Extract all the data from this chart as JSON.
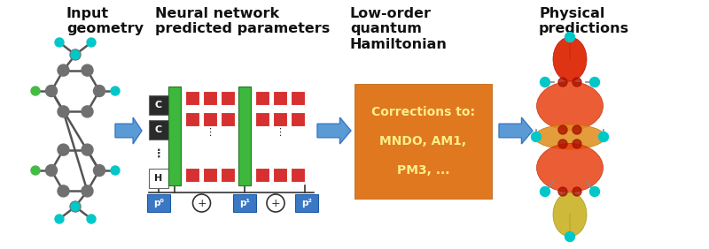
{
  "background_color": "#ffffff",
  "title1": "Input\ngeometry",
  "title2": "Neural network\npredicted parameters",
  "title3": "Low-order\nquantum\nHamiltonian",
  "title4": "Physical\npredictions",
  "title_fontsize": 11.5,
  "title_fontweight": "bold",
  "arrow_color": "#5b9bd5",
  "arrow_edge_color": "#3a78c4",
  "green_color": "#3db83d",
  "red_color": "#d63030",
  "blue_box_color": "#3a78c4",
  "orange_color": "#e07820",
  "orange_text_color": "#ffee88",
  "dark_text_color": "#111111",
  "node_gray": "#707070",
  "node_cyan": "#00c8c8",
  "bond_color": "#555555"
}
